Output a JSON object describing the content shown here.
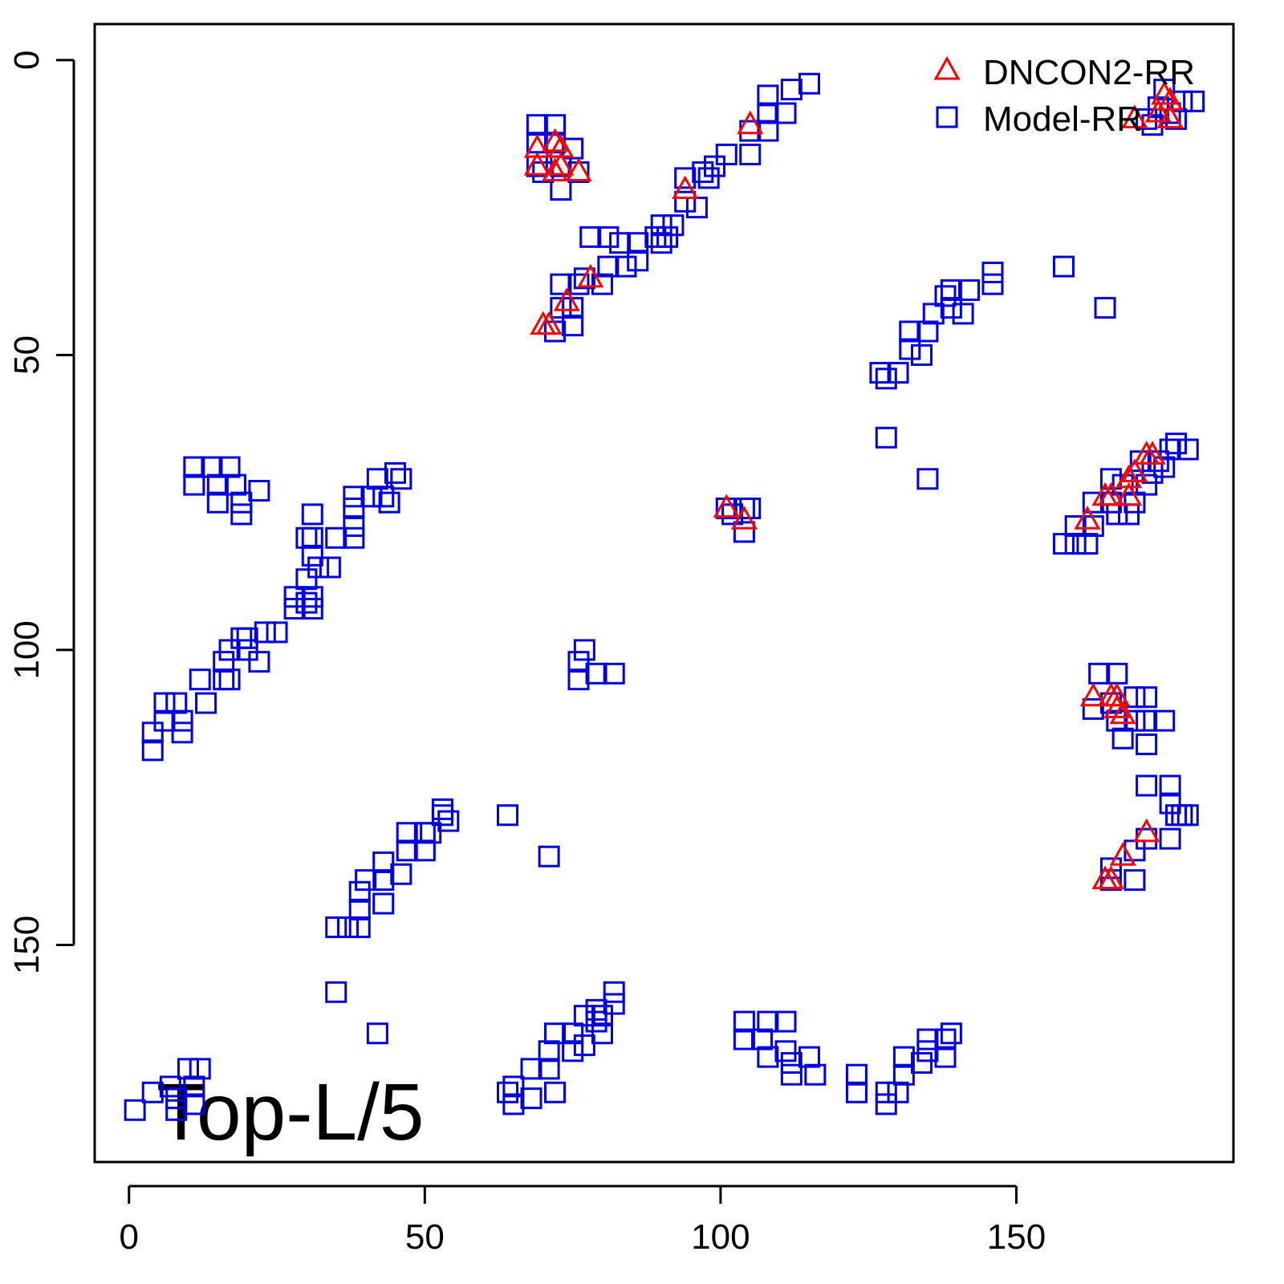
{
  "chart_data": {
    "type": "scatter",
    "annotation": "Top-L/5",
    "legend": "topright",
    "xlim": [
      -5.8,
      186.7
    ],
    "ylim": [
      186.8,
      -6.1
    ],
    "xticks": [
      0,
      50,
      100,
      150
    ],
    "yticks": [
      0,
      50,
      100,
      150
    ],
    "series": [
      {
        "name": "DNCON2-RR",
        "color": "#ff0000",
        "marker": "triangle",
        "x": [
          69,
          69,
          72,
          73,
          73,
          72,
          76,
          105,
          94,
          78,
          74,
          70,
          71,
          101,
          104,
          162,
          165,
          166,
          169,
          169,
          170,
          172,
          173,
          175,
          176,
          174,
          170,
          176,
          163,
          166,
          167,
          167,
          168,
          172,
          168,
          165,
          166
        ],
        "values": [
          15,
          18,
          14,
          15,
          18,
          19,
          19,
          11,
          22,
          37,
          41,
          45,
          45,
          76,
          78,
          78,
          74,
          74,
          74,
          71,
          70,
          67,
          67,
          6,
          7,
          9,
          10,
          10,
          108,
          108,
          108,
          110,
          111,
          131,
          135,
          139,
          139
        ]
      },
      {
        "name": "Model-RR",
        "color": "#0000e0",
        "marker": "square",
        "x": [
          69,
          72,
          69,
          72,
          75,
          69,
          73,
          76,
          73,
          70,
          72,
          75,
          73,
          75,
          73,
          76,
          77,
          80,
          78,
          81,
          81,
          84,
          83,
          86,
          86,
          89,
          90,
          91,
          90,
          92,
          94,
          96,
          94,
          97,
          98,
          99,
          101,
          105,
          105,
          108,
          108,
          108,
          111,
          112,
          115,
          173,
          174,
          175,
          176,
          178,
          180,
          172,
          177,
          127,
          128,
          130,
          132,
          132,
          134,
          135,
          136,
          138,
          139,
          141,
          139,
          142,
          146,
          146,
          158,
          165,
          128,
          135,
          158,
          160,
          162,
          160,
          163,
          163,
          166,
          167,
          166,
          168,
          169,
          170,
          171,
          173,
          172,
          174,
          175,
          176,
          179,
          177,
          101,
          102,
          104,
          105,
          104,
          77,
          76,
          79,
          82,
          76,
          164,
          167,
          163,
          166,
          167,
          170,
          172,
          170,
          172,
          175,
          172,
          168,
          172,
          176,
          176,
          177,
          179,
          172,
          176,
          166,
          170,
          166,
          170,
          178,
          4,
          4,
          6,
          6,
          8,
          9,
          9,
          13,
          12,
          16,
          17,
          16,
          17,
          19,
          20,
          20,
          22,
          23,
          25,
          28,
          28,
          30,
          31,
          31,
          30,
          32,
          31,
          31,
          31,
          30,
          34,
          35,
          38,
          38,
          38,
          38,
          41,
          43,
          42,
          45,
          46,
          44,
          11,
          14,
          17,
          11,
          15,
          15,
          18,
          19,
          22,
          19,
          35,
          37,
          39,
          39,
          39,
          40,
          43,
          43,
          43,
          46,
          47,
          47,
          50,
          50,
          51,
          53,
          54,
          53,
          64,
          71,
          35,
          42,
          1,
          4,
          7,
          8,
          8,
          10,
          11,
          11,
          12,
          64,
          65,
          65,
          68,
          68,
          71,
          71,
          72,
          72,
          75,
          75,
          77,
          77,
          79,
          80,
          79,
          82,
          82,
          80,
          104,
          104,
          107,
          108,
          111,
          108,
          111,
          112,
          115,
          116,
          112,
          123,
          123,
          128,
          128,
          130,
          131,
          131,
          134,
          135,
          138,
          139,
          138,
          135
        ],
        "values": [
          11,
          11,
          14,
          14,
          15,
          18,
          18,
          19,
          22,
          19,
          46,
          45,
          42,
          42,
          38,
          38,
          37,
          38,
          30,
          30,
          35,
          35,
          31,
          31,
          34,
          30,
          28,
          30,
          31,
          28,
          24,
          25,
          20,
          19,
          20,
          18,
          16,
          16,
          12,
          12,
          9,
          6,
          9,
          5,
          4,
          11,
          8,
          5,
          9,
          7,
          7,
          10,
          10,
          53,
          54,
          53,
          49,
          46,
          50,
          46,
          43,
          40,
          42,
          43,
          39,
          39,
          38,
          36,
          35,
          42,
          64,
          71,
          82,
          82,
          82,
          79,
          79,
          75,
          75,
          77,
          71,
          72,
          77,
          75,
          68,
          70,
          72,
          68,
          69,
          66,
          66,
          65,
          76,
          77,
          76,
          76,
          80,
          100,
          102,
          104,
          104,
          105,
          104,
          104,
          110,
          109,
          112,
          108,
          108,
          112,
          112,
          112,
          116,
          115,
          123,
          123,
          126,
          128,
          128,
          132,
          132,
          137,
          134,
          139,
          139,
          128,
          114,
          117,
          112,
          109,
          109,
          112,
          114,
          109,
          105,
          105,
          105,
          102,
          100,
          98,
          100,
          98,
          102,
          97,
          97,
          93,
          91,
          92,
          91,
          93,
          88,
          86,
          84,
          81,
          77,
          81,
          86,
          81,
          81,
          79,
          76,
          74,
          74,
          74,
          71,
          70,
          71,
          75,
          69,
          69,
          69,
          72,
          72,
          75,
          72,
          75,
          73,
          77,
          147,
          147,
          147,
          144,
          141,
          139,
          139,
          143,
          136,
          138,
          134,
          131,
          131,
          134,
          131,
          128,
          129,
          127,
          128,
          135,
          158,
          165,
          178,
          175,
          174,
          176,
          178,
          171,
          174,
          177,
          171,
          175,
          177,
          174,
          176,
          171,
          168,
          171,
          175,
          165,
          165,
          168,
          162,
          167,
          161,
          165,
          163,
          158,
          160,
          162,
          163,
          166,
          166,
          163,
          163,
          169,
          168,
          170,
          169,
          172,
          172,
          172,
          175,
          175,
          177,
          175,
          169,
          172,
          170,
          168,
          166,
          165,
          169,
          166
        ]
      }
    ]
  }
}
